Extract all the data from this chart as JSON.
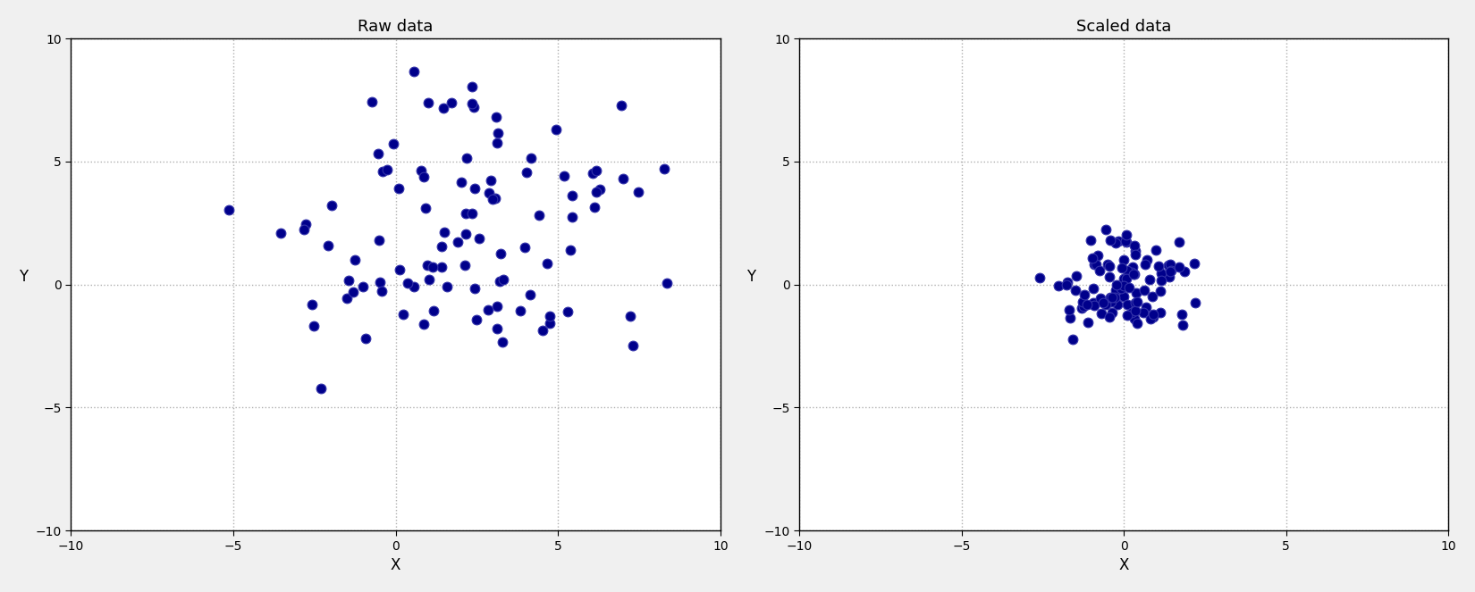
{
  "title_left": "Raw data",
  "title_right": "Scaled data",
  "xlabel": "X",
  "ylabel": "Y",
  "xlim": [
    -10,
    10
  ],
  "ylim": [
    -10,
    10
  ],
  "dot_color": "#00008B",
  "dot_edgecolor": "#3333aa",
  "dot_size": 60,
  "dot_linewidth": 0.8,
  "grid_color": "#b0b0b0",
  "grid_linestyle": ":",
  "grid_linewidth": 1.0,
  "random_seed": 0,
  "n_points": 100,
  "raw_x_mean": 2.0,
  "raw_y_mean": 2.0,
  "raw_x_std": 2.8,
  "raw_y_std": 2.8,
  "background_color": "#ffffff",
  "fig_facecolor": "#f0f0f0",
  "title_fontsize": 13,
  "label_fontsize": 12
}
